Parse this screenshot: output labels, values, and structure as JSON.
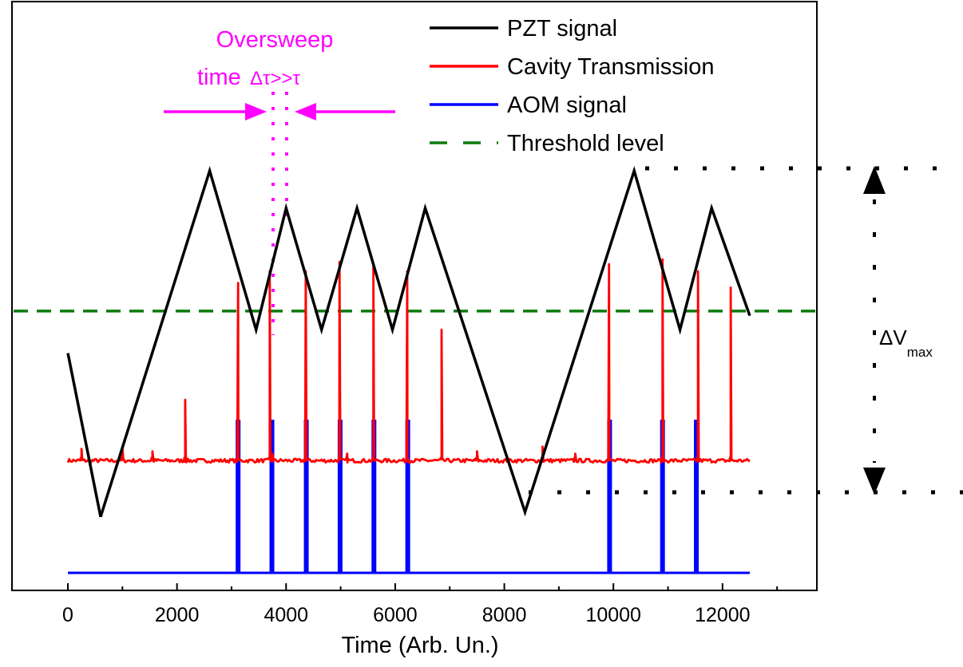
{
  "chart_data": {
    "type": "line",
    "xlabel": "Time (Arb. Un.)",
    "xlim": [
      -1000,
      14000
    ],
    "ylim": [
      0,
      100
    ],
    "xticks": [
      0,
      2000,
      4000,
      6000,
      8000,
      10000,
      12000
    ],
    "tick_labels": [
      "0",
      "2000",
      "4000",
      "6000",
      "8000",
      "10000",
      "12000"
    ],
    "grid": false,
    "legend_position": "top-right",
    "legend": [
      {
        "label": "PZT signal",
        "color": "#000000",
        "style": "solid"
      },
      {
        "label": "Cavity Transmission",
        "color": "#ff0000",
        "style": "solid"
      },
      {
        "label": "AOM signal",
        "color": "#0000ff",
        "style": "solid"
      },
      {
        "label": "Threshold level",
        "color": "#0a7a0a",
        "style": "dashed"
      }
    ],
    "series": [
      {
        "name": "PZT signal",
        "color": "#000000",
        "x": [
          0,
          600,
          2600,
          3450,
          4000,
          4650,
          5300,
          5950,
          6550,
          8380,
          10380,
          11220,
          11800,
          12500
        ],
        "y": [
          51,
          16,
          90,
          56,
          82,
          56,
          82,
          56,
          82,
          17,
          90,
          56,
          82,
          59
        ]
      },
      {
        "name": "Cavity Transmission",
        "color": "#ff0000",
        "baseline": 28,
        "noise": 0.4,
        "peaks": [
          {
            "x": 250,
            "y": 30.5
          },
          {
            "x": 1000,
            "y": 31
          },
          {
            "x": 1550,
            "y": 30
          },
          {
            "x": 2150,
            "y": 41
          },
          {
            "x": 3120,
            "y": 66
          },
          {
            "x": 3700,
            "y": 68.5
          },
          {
            "x": 3750,
            "y": 29.5
          },
          {
            "x": 4360,
            "y": 68.5
          },
          {
            "x": 4980,
            "y": 70.5
          },
          {
            "x": 5120,
            "y": 29.5
          },
          {
            "x": 5600,
            "y": 69.5
          },
          {
            "x": 6220,
            "y": 68.5
          },
          {
            "x": 6850,
            "y": 56
          },
          {
            "x": 7500,
            "y": 30
          },
          {
            "x": 8700,
            "y": 31
          },
          {
            "x": 9300,
            "y": 29.5
          },
          {
            "x": 9920,
            "y": 70
          },
          {
            "x": 10900,
            "y": 71
          },
          {
            "x": 11550,
            "y": 68.5
          },
          {
            "x": 12150,
            "y": 65
          }
        ]
      },
      {
        "name": "AOM signal",
        "color": "#0000ff",
        "baseline": 4,
        "pulse_top": 36.5,
        "pulses": [
          3120,
          3740,
          4370,
          4990,
          5610,
          6230,
          9930,
          10900,
          11520
        ]
      },
      {
        "name": "Threshold level",
        "color": "#0a7a0a",
        "y": 60
      }
    ],
    "annotations": [
      {
        "kind": "text",
        "text": "Oversweep",
        "color": "#ff00ff"
      },
      {
        "kind": "text",
        "text": "time",
        "color": "#ff00ff"
      },
      {
        "kind": "text",
        "text": "Δτ>>τ",
        "color": "#ff00ff"
      },
      {
        "kind": "vline",
        "x": 3750,
        "color": "#ff00ff",
        "style": "dotted"
      },
      {
        "kind": "vline",
        "x": 4000,
        "color": "#ff00ff",
        "style": "dotted"
      },
      {
        "kind": "arrow",
        "from_x": 1750,
        "to_x": 3750,
        "color": "#ff00ff"
      },
      {
        "kind": "arrow",
        "from_x": 6000,
        "to_x": 4000,
        "color": "#ff00ff"
      },
      {
        "kind": "hline",
        "y": 90,
        "from_x": 10380,
        "color": "#000000",
        "style": "dotted"
      },
      {
        "kind": "hline",
        "y": 16,
        "from_x": 8380,
        "color": "#000000",
        "style": "dotted"
      },
      {
        "kind": "double-arrow",
        "x": 13350,
        "y_top": 90,
        "y_bottom": 16,
        "color": "#000000"
      },
      {
        "kind": "label",
        "text": "ΔV",
        "sub": "max"
      }
    ]
  }
}
